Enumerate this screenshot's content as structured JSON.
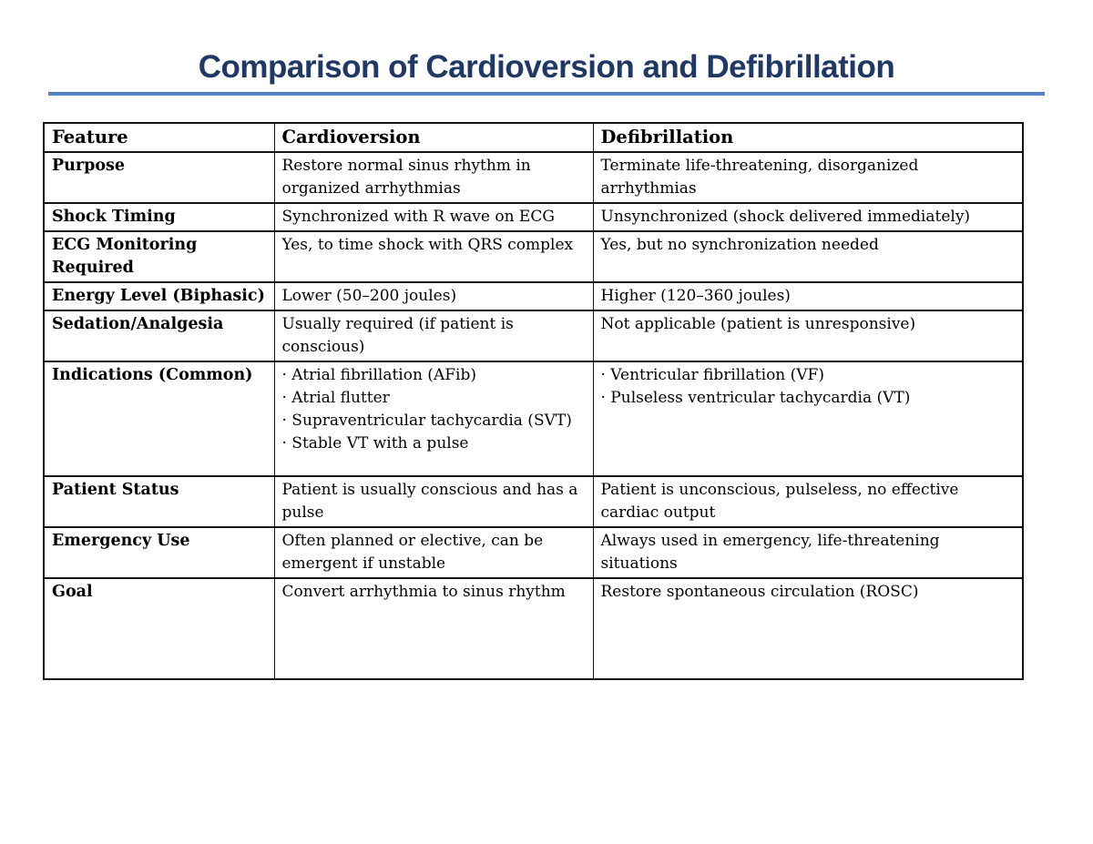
{
  "page": {
    "title": "Comparison of Cardioversion and Defibrillation"
  },
  "colors": {
    "title_text": "#1f3864",
    "title_rule": "#5585c2",
    "table_border": "#141414",
    "body_text": "#000000",
    "background": "#ffffff"
  },
  "table": {
    "headers": [
      "Feature",
      "Cardioversion",
      "Defibrillation"
    ],
    "rows": [
      {
        "feature": "Purpose",
        "cardioversion": "Restore normal sinus rhythm in organized arrhythmias",
        "defibrillation": "Terminate life-threatening, disorganized arrhythmias"
      },
      {
        "feature": "Shock Timing",
        "cardioversion": "Synchronized with R wave on ECG",
        "defibrillation": "Unsynchronized (shock delivered immediately)"
      },
      {
        "feature": "ECG Monitoring Required",
        "cardioversion": "Yes, to time shock with QRS complex",
        "defibrillation": "Yes, but no synchronization needed"
      },
      {
        "feature": "Energy Level (Biphasic)",
        "cardioversion": "Lower (50–200 joules)",
        "defibrillation": "Higher (120–360 joules)"
      },
      {
        "feature": "Sedation/Analgesia",
        "cardioversion": "Usually required (if patient is conscious)",
        "defibrillation": "Not applicable (patient is unresponsive)"
      },
      {
        "feature": "Indications (Common)",
        "cardioversion_items": [
          "· Atrial fibrillation (AFib)",
          "· Atrial flutter",
          "· Supraventricular tachycardia (SVT)",
          "· Stable VT with a pulse"
        ],
        "defibrillation_items": [
          "· Ventricular fibrillation (VF)",
          "· Pulseless ventricular tachycardia (VT)"
        ]
      },
      {
        "feature": "Patient Status",
        "cardioversion": "Patient is usually conscious and has a pulse",
        "defibrillation": "Patient is unconscious, pulseless, no effective cardiac output"
      },
      {
        "feature": "Emergency Use",
        "cardioversion": "Often planned or elective, can be emergent if unstable",
        "defibrillation": "Always used in emergency, life-threatening situations"
      },
      {
        "feature": "Goal",
        "cardioversion": "Convert arrhythmia to sinus rhythm",
        "defibrillation": "Restore spontaneous circulation (ROSC)"
      }
    ]
  }
}
